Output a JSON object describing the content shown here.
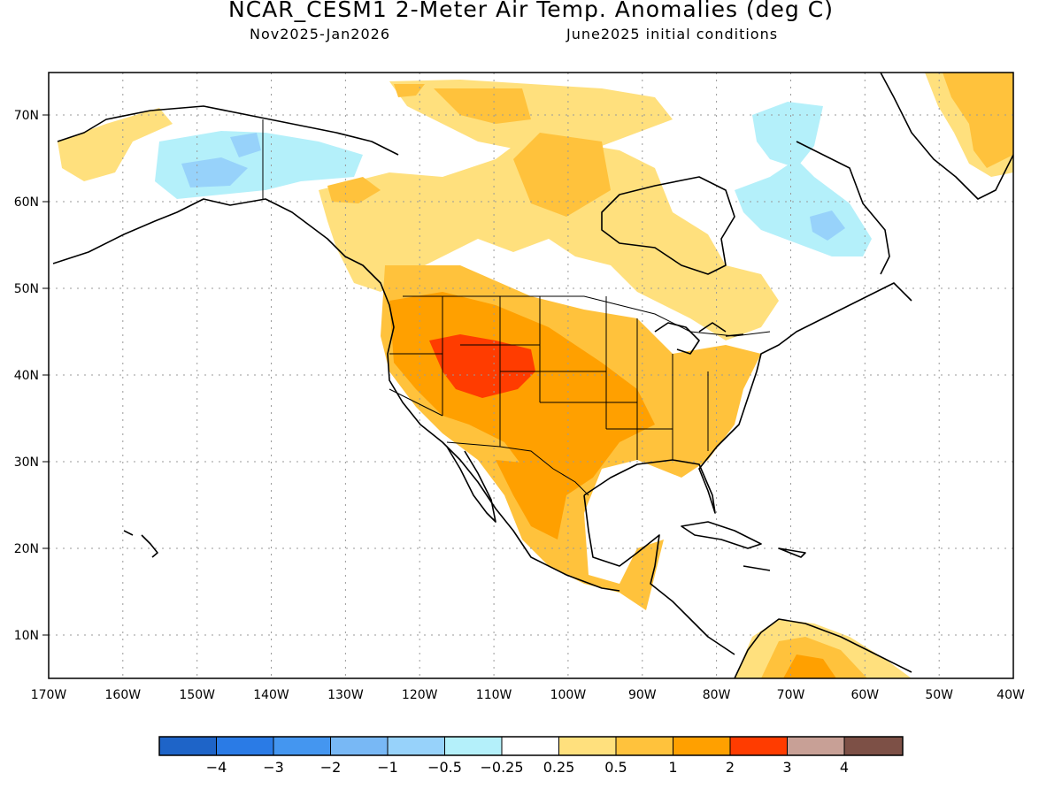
{
  "title": "NCAR_CESM1 2-Meter Air Temp. Anomalies (deg C)",
  "subtitle_left": "Nov2025-Jan2026",
  "subtitle_right": "June2025 initial conditions",
  "map": {
    "lon_range": [
      -170,
      -40
    ],
    "lat_range": [
      5,
      75
    ],
    "lon_ticks": [
      "170W",
      "160W",
      "150W",
      "140W",
      "130W",
      "120W",
      "110W",
      "100W",
      "90W",
      "80W",
      "70W",
      "60W",
      "50W",
      "40W"
    ],
    "lat_ticks": [
      "10N",
      "20N",
      "30N",
      "40N",
      "50N",
      "60N",
      "70N"
    ],
    "grid": "dotted"
  },
  "colorbar": {
    "colors": [
      "#1e64c8",
      "#2a7be6",
      "#4496f0",
      "#78b8f5",
      "#97d2fa",
      "#b4f0fa",
      "#ffffff",
      "#ffe07d",
      "#ffc23c",
      "#ffa000",
      "#ff3c00",
      "#c8a096",
      "#7d5046"
    ],
    "labels": [
      "−4",
      "−3",
      "−2",
      "−1",
      "−0.5",
      "−0.25",
      "0.25",
      "0.5",
      "1",
      "2",
      "3",
      "4"
    ]
  }
}
